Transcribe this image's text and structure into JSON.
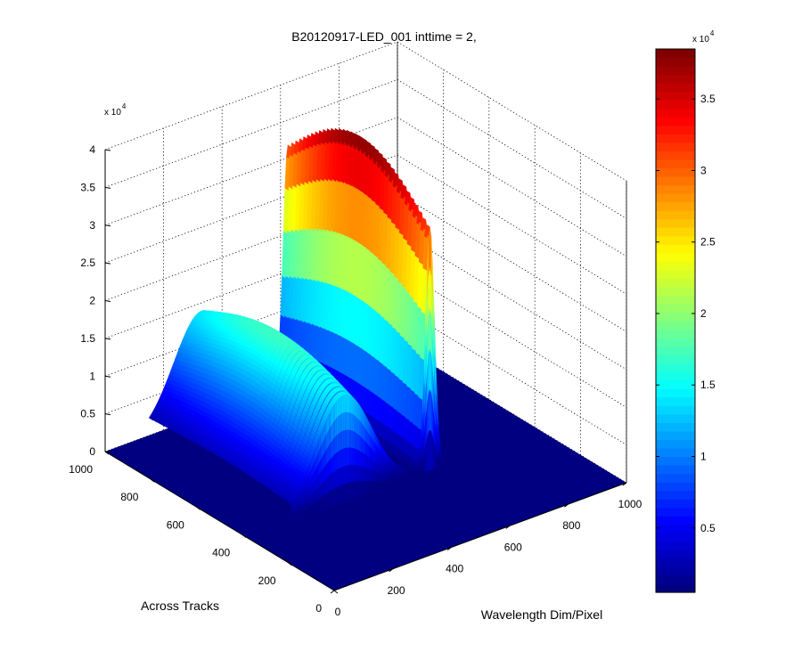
{
  "chart_data": {
    "type": "surface3d",
    "title": "B20120917-LED_001 inttime = 2,",
    "xlabel": "Wavelength Dim/Pixel",
    "ylabel": "Across Tracks",
    "zlabel": "",
    "x_ticks": [
      "0",
      "200",
      "400",
      "600",
      "800",
      "1000"
    ],
    "y_ticks": [
      "0",
      "200",
      "400",
      "600",
      "800",
      "1000"
    ],
    "z_ticks": [
      "0",
      "0.5",
      "1",
      "1.5",
      "2",
      "2.5",
      "3",
      "3.5",
      "4"
    ],
    "z_multiplier": "x 10",
    "z_multiplier_exp": "4",
    "xlim": [
      0,
      1000
    ],
    "ylim": [
      0,
      1000
    ],
    "zlim": [
      0,
      40000
    ],
    "grid": true,
    "colormap": "jet",
    "colorbar": {
      "ticks": [
        "0.5",
        "1",
        "1.5",
        "2",
        "2.5",
        "3",
        "3.5"
      ],
      "multiplier": "x 10",
      "multiplier_exp": "4",
      "clim": [
        500,
        38500
      ]
    },
    "series": [
      {
        "broad_peak": {
          "x_center": 330,
          "x_width": 95,
          "height": 17000,
          "y_range": [
            380,
            1000
          ]
        },
        "sharp_peak": {
          "x_center": 625,
          "x_width": 16,
          "height": 38500,
          "y_range": [
            380,
            1000
          ]
        },
        "background": 0
      }
    ]
  }
}
